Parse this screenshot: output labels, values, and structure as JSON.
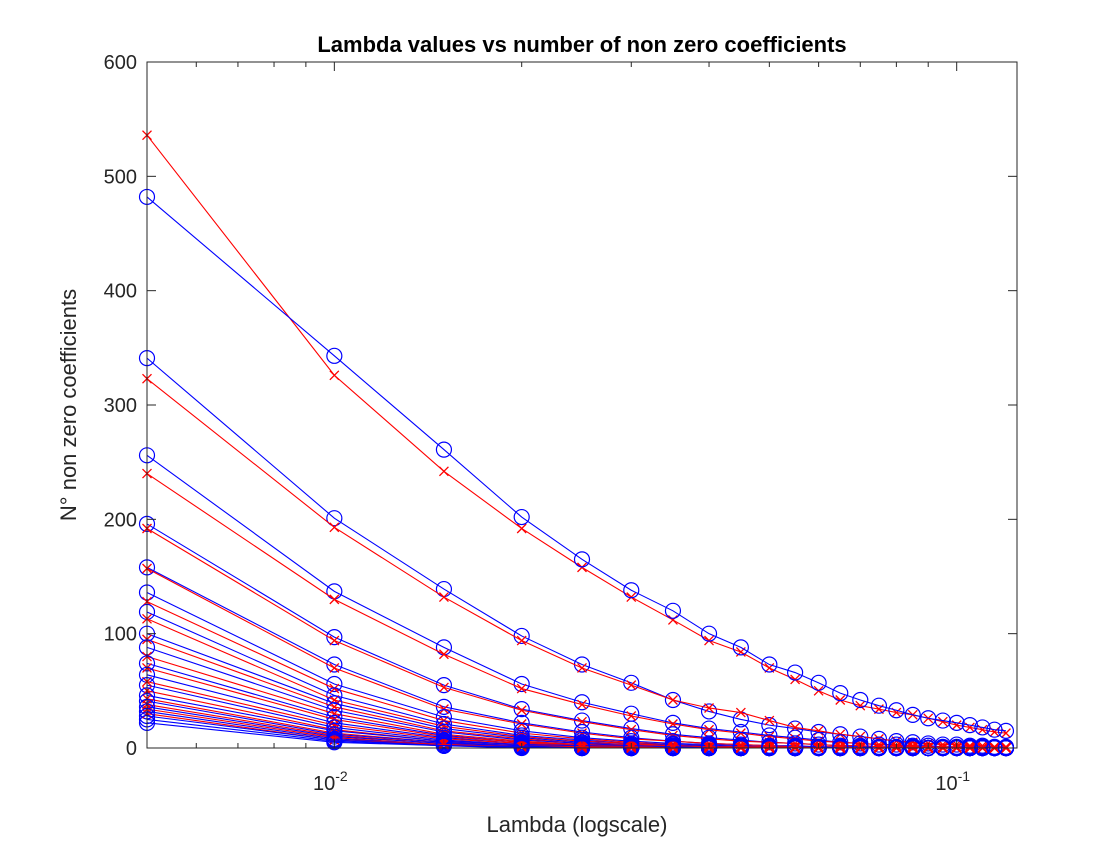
{
  "chart_data": {
    "type": "line",
    "title": "Lambda values vs number of non zero coefficients",
    "xlabel": "Lambda (logscale)",
    "ylabel": "N° non zero coefficients",
    "xscale": "log",
    "xlim": [
      0.005,
      0.125
    ],
    "ylim": [
      0,
      600
    ],
    "yticks": [
      0,
      100,
      200,
      300,
      400,
      500,
      600
    ],
    "xticks": [
      {
        "value": 0.01,
        "base": "10",
        "exp": "-2"
      },
      {
        "value": 0.1,
        "base": "10",
        "exp": "-1"
      }
    ],
    "grid": false,
    "legend": "none",
    "x": [
      0.005,
      0.01,
      0.015,
      0.02,
      0.025,
      0.03,
      0.035,
      0.04,
      0.045,
      0.05,
      0.055,
      0.06,
      0.065,
      0.07,
      0.075,
      0.08,
      0.085,
      0.09,
      0.095,
      0.1,
      0.105,
      0.11,
      0.115,
      0.12
    ],
    "series": [
      {
        "marker": "x",
        "color": "#ff0000",
        "values": [
          536,
          326,
          242,
          192,
          158,
          132,
          112,
          94,
          84,
          70,
          60,
          50,
          42,
          37,
          34,
          31,
          29,
          26,
          23,
          20,
          18,
          16,
          14,
          13
        ]
      },
      {
        "marker": "o",
        "color": "#0000ff",
        "values": [
          482,
          343,
          261,
          202,
          165,
          138,
          120,
          100,
          88,
          73,
          66,
          57,
          48,
          42,
          37,
          33,
          29,
          26,
          24,
          22,
          20,
          18,
          16,
          15
        ]
      },
      {
        "marker": "o",
        "color": "#0000ff",
        "values": [
          341,
          201,
          139,
          98,
          73,
          57,
          42,
          32,
          25,
          20,
          17,
          14,
          12,
          10,
          8,
          6,
          5,
          4,
          3,
          3,
          2,
          2,
          1,
          1
        ]
      },
      {
        "marker": "x",
        "color": "#ff0000",
        "values": [
          323,
          193,
          132,
          94,
          70,
          55,
          42,
          35,
          31,
          24,
          18,
          15,
          12,
          10,
          8,
          6,
          5,
          4,
          3,
          3,
          2,
          2,
          1,
          1
        ]
      },
      {
        "marker": "o",
        "color": "#0000ff",
        "values": [
          256,
          137,
          88,
          56,
          40,
          30,
          22,
          17,
          14,
          11,
          9,
          7,
          5,
          4,
          3,
          3,
          2,
          2,
          1,
          1,
          1,
          1,
          0,
          0
        ]
      },
      {
        "marker": "x",
        "color": "#ff0000",
        "values": [
          240,
          130,
          82,
          52,
          38,
          28,
          21,
          16,
          13,
          10,
          8,
          6,
          5,
          4,
          3,
          2,
          2,
          1,
          1,
          1,
          1,
          0,
          0,
          0
        ]
      },
      {
        "marker": "o",
        "color": "#0000ff",
        "values": [
          196,
          97,
          55,
          34,
          24,
          17,
          12,
          9,
          7,
          5,
          4,
          3,
          2,
          2,
          1,
          1,
          1,
          0,
          0,
          0,
          0,
          0,
          0,
          0
        ]
      },
      {
        "marker": "x",
        "color": "#ff0000",
        "values": [
          192,
          94,
          53,
          33,
          23,
          16,
          11,
          8,
          6,
          5,
          4,
          3,
          2,
          2,
          1,
          1,
          1,
          0,
          0,
          0,
          0,
          0,
          0,
          0
        ]
      },
      {
        "marker": "o",
        "color": "#0000ff",
        "values": [
          158,
          73,
          36,
          22,
          14,
          9,
          6,
          4,
          3,
          2,
          2,
          1,
          1,
          1,
          0,
          0,
          0,
          0,
          0,
          0,
          0,
          0,
          0,
          0
        ]
      },
      {
        "marker": "x",
        "color": "#ff0000",
        "values": [
          157,
          70,
          34,
          21,
          13,
          8,
          6,
          4,
          3,
          2,
          1,
          1,
          1,
          0,
          0,
          0,
          0,
          0,
          0,
          0,
          0,
          0,
          0,
          0
        ]
      },
      {
        "marker": "o",
        "color": "#0000ff",
        "values": [
          136,
          56,
          27,
          15,
          9,
          6,
          4,
          3,
          2,
          1,
          1,
          1,
          0,
          0,
          0,
          0,
          0,
          0,
          0,
          0,
          0,
          0,
          0,
          0
        ]
      },
      {
        "marker": "x",
        "color": "#ff0000",
        "values": [
          128,
          52,
          24,
          13,
          8,
          5,
          3,
          2,
          1,
          1,
          1,
          0,
          0,
          0,
          0,
          0,
          0,
          0,
          0,
          0,
          0,
          0,
          0,
          0
        ]
      },
      {
        "marker": "o",
        "color": "#0000ff",
        "values": [
          119,
          46,
          21,
          11,
          7,
          4,
          3,
          2,
          1,
          1,
          0,
          0,
          0,
          0,
          0,
          0,
          0,
          0,
          0,
          0,
          0,
          0,
          0,
          0
        ]
      },
      {
        "marker": "x",
        "color": "#ff0000",
        "values": [
          113,
          42,
          19,
          10,
          6,
          4,
          2,
          1,
          1,
          1,
          0,
          0,
          0,
          0,
          0,
          0,
          0,
          0,
          0,
          0,
          0,
          0,
          0,
          0
        ]
      },
      {
        "marker": "o",
        "color": "#0000ff",
        "values": [
          100,
          39,
          17,
          9,
          5,
          3,
          2,
          1,
          1,
          0,
          0,
          0,
          0,
          0,
          0,
          0,
          0,
          0,
          0,
          0,
          0,
          0,
          0,
          0
        ]
      },
      {
        "marker": "x",
        "color": "#ff0000",
        "values": [
          95,
          36,
          15,
          8,
          4,
          3,
          2,
          1,
          1,
          0,
          0,
          0,
          0,
          0,
          0,
          0,
          0,
          0,
          0,
          0,
          0,
          0,
          0,
          0
        ]
      },
      {
        "marker": "o",
        "color": "#0000ff",
        "values": [
          88,
          33,
          14,
          7,
          4,
          2,
          1,
          1,
          0,
          0,
          0,
          0,
          0,
          0,
          0,
          0,
          0,
          0,
          0,
          0,
          0,
          0,
          0,
          0
        ]
      },
      {
        "marker": "x",
        "color": "#ff0000",
        "values": [
          80,
          30,
          12,
          6,
          3,
          2,
          1,
          1,
          0,
          0,
          0,
          0,
          0,
          0,
          0,
          0,
          0,
          0,
          0,
          0,
          0,
          0,
          0,
          0
        ]
      },
      {
        "marker": "o",
        "color": "#0000ff",
        "values": [
          74,
          27,
          11,
          5,
          3,
          2,
          1,
          0,
          0,
          0,
          0,
          0,
          0,
          0,
          0,
          0,
          0,
          0,
          0,
          0,
          0,
          0,
          0,
          0
        ]
      },
      {
        "marker": "x",
        "color": "#ff0000",
        "values": [
          70,
          25,
          10,
          5,
          3,
          1,
          1,
          0,
          0,
          0,
          0,
          0,
          0,
          0,
          0,
          0,
          0,
          0,
          0,
          0,
          0,
          0,
          0,
          0
        ]
      },
      {
        "marker": "o",
        "color": "#0000ff",
        "values": [
          64,
          22,
          9,
          4,
          2,
          1,
          1,
          0,
          0,
          0,
          0,
          0,
          0,
          0,
          0,
          0,
          0,
          0,
          0,
          0,
          0,
          0,
          0,
          0
        ]
      },
      {
        "marker": "x",
        "color": "#ff0000",
        "values": [
          58,
          20,
          8,
          4,
          2,
          1,
          0,
          0,
          0,
          0,
          0,
          0,
          0,
          0,
          0,
          0,
          0,
          0,
          0,
          0,
          0,
          0,
          0,
          0
        ]
      },
      {
        "marker": "o",
        "color": "#0000ff",
        "values": [
          55,
          18,
          7,
          3,
          2,
          1,
          0,
          0,
          0,
          0,
          0,
          0,
          0,
          0,
          0,
          0,
          0,
          0,
          0,
          0,
          0,
          0,
          0,
          0
        ]
      },
      {
        "marker": "x",
        "color": "#ff0000",
        "values": [
          50,
          16,
          6,
          3,
          1,
          1,
          0,
          0,
          0,
          0,
          0,
          0,
          0,
          0,
          0,
          0,
          0,
          0,
          0,
          0,
          0,
          0,
          0,
          0
        ]
      },
      {
        "marker": "o",
        "color": "#0000ff",
        "values": [
          46,
          15,
          6,
          3,
          1,
          0,
          0,
          0,
          0,
          0,
          0,
          0,
          0,
          0,
          0,
          0,
          0,
          0,
          0,
          0,
          0,
          0,
          0,
          0
        ]
      },
      {
        "marker": "x",
        "color": "#ff0000",
        "values": [
          43,
          13,
          5,
          2,
          1,
          0,
          0,
          0,
          0,
          0,
          0,
          0,
          0,
          0,
          0,
          0,
          0,
          0,
          0,
          0,
          0,
          0,
          0,
          0
        ]
      },
      {
        "marker": "o",
        "color": "#0000ff",
        "values": [
          41,
          12,
          5,
          2,
          1,
          0,
          0,
          0,
          0,
          0,
          0,
          0,
          0,
          0,
          0,
          0,
          0,
          0,
          0,
          0,
          0,
          0,
          0,
          0
        ]
      },
      {
        "marker": "x",
        "color": "#ff0000",
        "values": [
          38,
          11,
          4,
          2,
          1,
          0,
          0,
          0,
          0,
          0,
          0,
          0,
          0,
          0,
          0,
          0,
          0,
          0,
          0,
          0,
          0,
          0,
          0,
          0
        ]
      },
      {
        "marker": "o",
        "color": "#0000ff",
        "values": [
          36,
          10,
          4,
          2,
          0,
          0,
          0,
          0,
          0,
          0,
          0,
          0,
          0,
          0,
          0,
          0,
          0,
          0,
          0,
          0,
          0,
          0,
          0,
          0
        ]
      },
      {
        "marker": "x",
        "color": "#ff0000",
        "values": [
          34,
          9,
          3,
          1,
          0,
          0,
          0,
          0,
          0,
          0,
          0,
          0,
          0,
          0,
          0,
          0,
          0,
          0,
          0,
          0,
          0,
          0,
          0,
          0
        ]
      },
      {
        "marker": "o",
        "color": "#0000ff",
        "values": [
          32,
          8,
          3,
          1,
          0,
          0,
          0,
          0,
          0,
          0,
          0,
          0,
          0,
          0,
          0,
          0,
          0,
          0,
          0,
          0,
          0,
          0,
          0,
          0
        ]
      },
      {
        "marker": "x",
        "color": "#ff0000",
        "values": [
          30,
          7,
          3,
          1,
          0,
          0,
          0,
          0,
          0,
          0,
          0,
          0,
          0,
          0,
          0,
          0,
          0,
          0,
          0,
          0,
          0,
          0,
          0,
          0
        ]
      },
      {
        "marker": "o",
        "color": "#0000ff",
        "values": [
          28,
          7,
          2,
          1,
          0,
          0,
          0,
          0,
          0,
          0,
          0,
          0,
          0,
          0,
          0,
          0,
          0,
          0,
          0,
          0,
          0,
          0,
          0,
          0
        ]
      },
      {
        "marker": "o",
        "color": "#0000ff",
        "values": [
          25,
          6,
          2,
          1,
          0,
          0,
          0,
          0,
          0,
          0,
          0,
          0,
          0,
          0,
          0,
          0,
          0,
          0,
          0,
          0,
          0,
          0,
          0,
          0
        ]
      },
      {
        "marker": "o",
        "color": "#0000ff",
        "values": [
          22,
          5,
          2,
          0,
          0,
          0,
          0,
          0,
          0,
          0,
          0,
          0,
          0,
          0,
          0,
          0,
          0,
          0,
          0,
          0,
          0,
          0,
          0,
          0
        ]
      }
    ]
  }
}
